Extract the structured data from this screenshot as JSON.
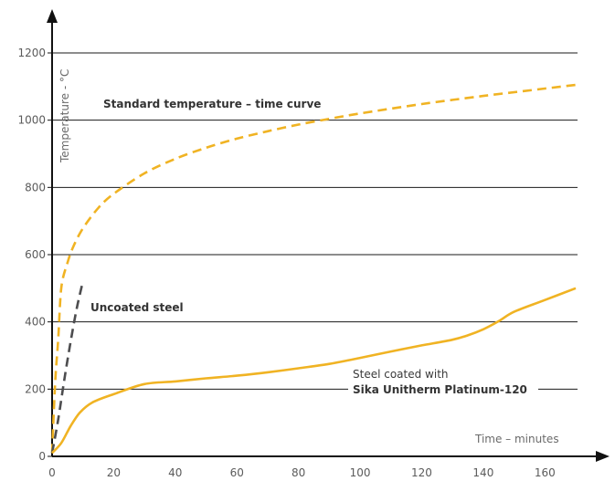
{
  "chart_data": {
    "type": "line",
    "title": "",
    "xlabel": "Time – minutes",
    "ylabel": "Temperature - °C",
    "xlim": [
      0,
      170
    ],
    "ylim": [
      0,
      1200
    ],
    "x_ticks": [
      0,
      20,
      40,
      60,
      80,
      100,
      120,
      140,
      160
    ],
    "y_ticks": [
      0,
      200,
      400,
      600,
      800,
      1000,
      1200
    ],
    "grid": "horizontal",
    "colors": {
      "primary": "#f0b323",
      "secondary": "#4d4d4f",
      "grid": "#1a1a1a"
    },
    "series": [
      {
        "name": "Standard temperature – time curve",
        "style": "dashed",
        "color": "#f0b323",
        "x": [
          0,
          1,
          2,
          3,
          5,
          7,
          10,
          15,
          20,
          30,
          40,
          50,
          60,
          70,
          80,
          90,
          100,
          120,
          140,
          160,
          170
        ],
        "y": [
          10,
          220,
          349,
          502,
          576,
          626,
          678,
          739,
          781,
          842,
          885,
          918,
          945,
          967,
          987,
          1004,
          1020,
          1048,
          1072,
          1094,
          1105
        ]
      },
      {
        "name": "Uncoated steel",
        "style": "dashed",
        "color": "#4d4d4f",
        "x": [
          0,
          2,
          4,
          6,
          8,
          10
        ],
        "y": [
          10,
          110,
          230,
          340,
          440,
          520
        ]
      },
      {
        "name": "Steel coated with Sika Unitherm Platinum-120",
        "style": "solid",
        "color": "#f0b323",
        "x": [
          0,
          3,
          6,
          9,
          13,
          20,
          30,
          40,
          50,
          60,
          70,
          80,
          90,
          100,
          110,
          120,
          130,
          135,
          140,
          145,
          150,
          160,
          170
        ],
        "y": [
          10,
          40,
          90,
          130,
          160,
          185,
          215,
          223,
          232,
          240,
          250,
          262,
          275,
          293,
          312,
          330,
          347,
          360,
          378,
          402,
          430,
          465,
          500
        ]
      }
    ],
    "annotations": {
      "standard": "Standard temperature – time curve",
      "uncoated": "Uncoated steel",
      "coated_line1": "Steel coated with",
      "coated_line2": "Sika Unitherm Platinum-120"
    }
  }
}
